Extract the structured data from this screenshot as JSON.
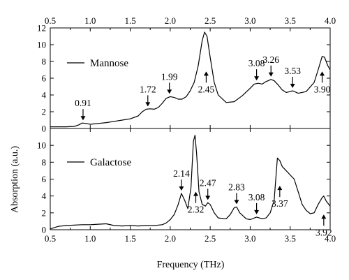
{
  "chart_data": {
    "type": "line",
    "xlabel": "Frequency (THz)",
    "ylabel": "Absorption (a.u.)",
    "xlim": [
      0.5,
      4.0
    ],
    "x_ticks": [
      "0.5",
      "1.0",
      "1.5",
      "2.0",
      "2.5",
      "3.0",
      "3.5",
      "4.0"
    ],
    "grid": false,
    "legend_placement": "left, inside each panel",
    "panels": [
      {
        "series_name": "Mannose",
        "ylim": [
          0,
          12
        ],
        "y_ticks": [
          "0",
          "2",
          "4",
          "6",
          "8",
          "10",
          "12"
        ],
        "points": [
          [
            0.5,
            0.2
          ],
          [
            0.6,
            0.2
          ],
          [
            0.7,
            0.2
          ],
          [
            0.8,
            0.25
          ],
          [
            0.85,
            0.4
          ],
          [
            0.9,
            0.65
          ],
          [
            0.95,
            0.6
          ],
          [
            1.0,
            0.5
          ],
          [
            1.05,
            0.55
          ],
          [
            1.1,
            0.6
          ],
          [
            1.2,
            0.7
          ],
          [
            1.3,
            0.85
          ],
          [
            1.4,
            1.0
          ],
          [
            1.5,
            1.15
          ],
          [
            1.6,
            1.5
          ],
          [
            1.65,
            2.0
          ],
          [
            1.7,
            2.3
          ],
          [
            1.75,
            2.35
          ],
          [
            1.8,
            2.3
          ],
          [
            1.85,
            2.5
          ],
          [
            1.9,
            3.0
          ],
          [
            1.95,
            3.6
          ],
          [
            2.0,
            3.8
          ],
          [
            2.05,
            3.7
          ],
          [
            2.1,
            3.5
          ],
          [
            2.15,
            3.5
          ],
          [
            2.2,
            3.8
          ],
          [
            2.25,
            4.5
          ],
          [
            2.3,
            5.5
          ],
          [
            2.35,
            7.5
          ],
          [
            2.4,
            10.5
          ],
          [
            2.43,
            11.5
          ],
          [
            2.46,
            11.0
          ],
          [
            2.5,
            8.5
          ],
          [
            2.55,
            5.5
          ],
          [
            2.6,
            4.0
          ],
          [
            2.7,
            3.1
          ],
          [
            2.8,
            3.2
          ],
          [
            2.9,
            3.9
          ],
          [
            3.0,
            4.8
          ],
          [
            3.05,
            5.3
          ],
          [
            3.1,
            5.4
          ],
          [
            3.15,
            5.3
          ],
          [
            3.2,
            5.6
          ],
          [
            3.26,
            5.85
          ],
          [
            3.3,
            5.7
          ],
          [
            3.35,
            5.2
          ],
          [
            3.4,
            4.6
          ],
          [
            3.45,
            4.3
          ],
          [
            3.5,
            4.4
          ],
          [
            3.53,
            4.5
          ],
          [
            3.6,
            4.2
          ],
          [
            3.7,
            4.4
          ],
          [
            3.8,
            5.5
          ],
          [
            3.85,
            7.0
          ],
          [
            3.9,
            8.6
          ],
          [
            3.93,
            8.5
          ],
          [
            3.97,
            7.5
          ],
          [
            4.0,
            7.0
          ]
        ],
        "annotations": [
          {
            "label": "0.91",
            "x": 0.91,
            "y": 0.65,
            "dir": "down"
          },
          {
            "label": "1.72",
            "x": 1.72,
            "y": 2.3,
            "dir": "down"
          },
          {
            "label": "1.99",
            "x": 1.99,
            "y": 3.8,
            "dir": "down"
          },
          {
            "label": "2.45",
            "x": 2.45,
            "y": 6.8,
            "dir": "up"
          },
          {
            "label": "3.08",
            "x": 3.08,
            "y": 5.4,
            "dir": "down"
          },
          {
            "label": "3.26",
            "x": 3.26,
            "y": 5.85,
            "dir": "down"
          },
          {
            "label": "3.53",
            "x": 3.53,
            "y": 4.5,
            "dir": "down"
          },
          {
            "label": "3.90",
            "x": 3.9,
            "y": 6.8,
            "dir": "up"
          }
        ]
      },
      {
        "series_name": "Galactose",
        "ylim": [
          0,
          12
        ],
        "y_ticks": [
          "0",
          "2",
          "4",
          "6",
          "8",
          "10"
        ],
        "points": [
          [
            0.5,
            0.1
          ],
          [
            0.6,
            0.4
          ],
          [
            0.7,
            0.5
          ],
          [
            0.8,
            0.55
          ],
          [
            0.9,
            0.6
          ],
          [
            1.0,
            0.6
          ],
          [
            1.1,
            0.65
          ],
          [
            1.2,
            0.7
          ],
          [
            1.3,
            0.5
          ],
          [
            1.4,
            0.45
          ],
          [
            1.5,
            0.5
          ],
          [
            1.6,
            0.45
          ],
          [
            1.7,
            0.5
          ],
          [
            1.8,
            0.5
          ],
          [
            1.9,
            0.6
          ],
          [
            1.95,
            0.8
          ],
          [
            2.0,
            1.2
          ],
          [
            2.05,
            1.8
          ],
          [
            2.1,
            3.0
          ],
          [
            2.14,
            4.3
          ],
          [
            2.18,
            3.5
          ],
          [
            2.22,
            2.5
          ],
          [
            2.26,
            5.0
          ],
          [
            2.29,
            10.5
          ],
          [
            2.31,
            11.2
          ],
          [
            2.33,
            9.0
          ],
          [
            2.36,
            4.5
          ],
          [
            2.4,
            3.0
          ],
          [
            2.44,
            2.8
          ],
          [
            2.47,
            3.2
          ],
          [
            2.5,
            3.0
          ],
          [
            2.55,
            2.0
          ],
          [
            2.6,
            1.4
          ],
          [
            2.7,
            1.3
          ],
          [
            2.75,
            1.8
          ],
          [
            2.8,
            2.6
          ],
          [
            2.83,
            2.7
          ],
          [
            2.87,
            2.0
          ],
          [
            2.95,
            1.3
          ],
          [
            3.0,
            1.2
          ],
          [
            3.08,
            1.5
          ],
          [
            3.15,
            1.3
          ],
          [
            3.2,
            1.4
          ],
          [
            3.25,
            2.0
          ],
          [
            3.3,
            3.5
          ],
          [
            3.34,
            8.5
          ],
          [
            3.37,
            8.2
          ],
          [
            3.4,
            7.5
          ],
          [
            3.45,
            7.0
          ],
          [
            3.5,
            6.5
          ],
          [
            3.55,
            6.0
          ],
          [
            3.6,
            4.5
          ],
          [
            3.65,
            3.0
          ],
          [
            3.7,
            2.3
          ],
          [
            3.75,
            1.9
          ],
          [
            3.8,
            2.0
          ],
          [
            3.85,
            3.0
          ],
          [
            3.9,
            3.8
          ],
          [
            3.92,
            4.0
          ],
          [
            3.95,
            3.4
          ],
          [
            4.0,
            2.8
          ]
        ],
        "annotations": [
          {
            "label": "2.14",
            "x": 2.14,
            "y": 4.3,
            "dir": "down"
          },
          {
            "label": "2.32",
            "x": 2.32,
            "y": 4.5,
            "dir": "up"
          },
          {
            "label": "2.47",
            "x": 2.47,
            "y": 3.2,
            "dir": "down"
          },
          {
            "label": "2.83",
            "x": 2.83,
            "y": 2.7,
            "dir": "down"
          },
          {
            "label": "3.08",
            "x": 3.08,
            "y": 1.5,
            "dir": "down"
          },
          {
            "label": "3.37",
            "x": 3.37,
            "y": 5.2,
            "dir": "up"
          },
          {
            "label": "3.92",
            "x": 3.92,
            "y": 1.8,
            "dir": "up"
          }
        ]
      }
    ]
  }
}
